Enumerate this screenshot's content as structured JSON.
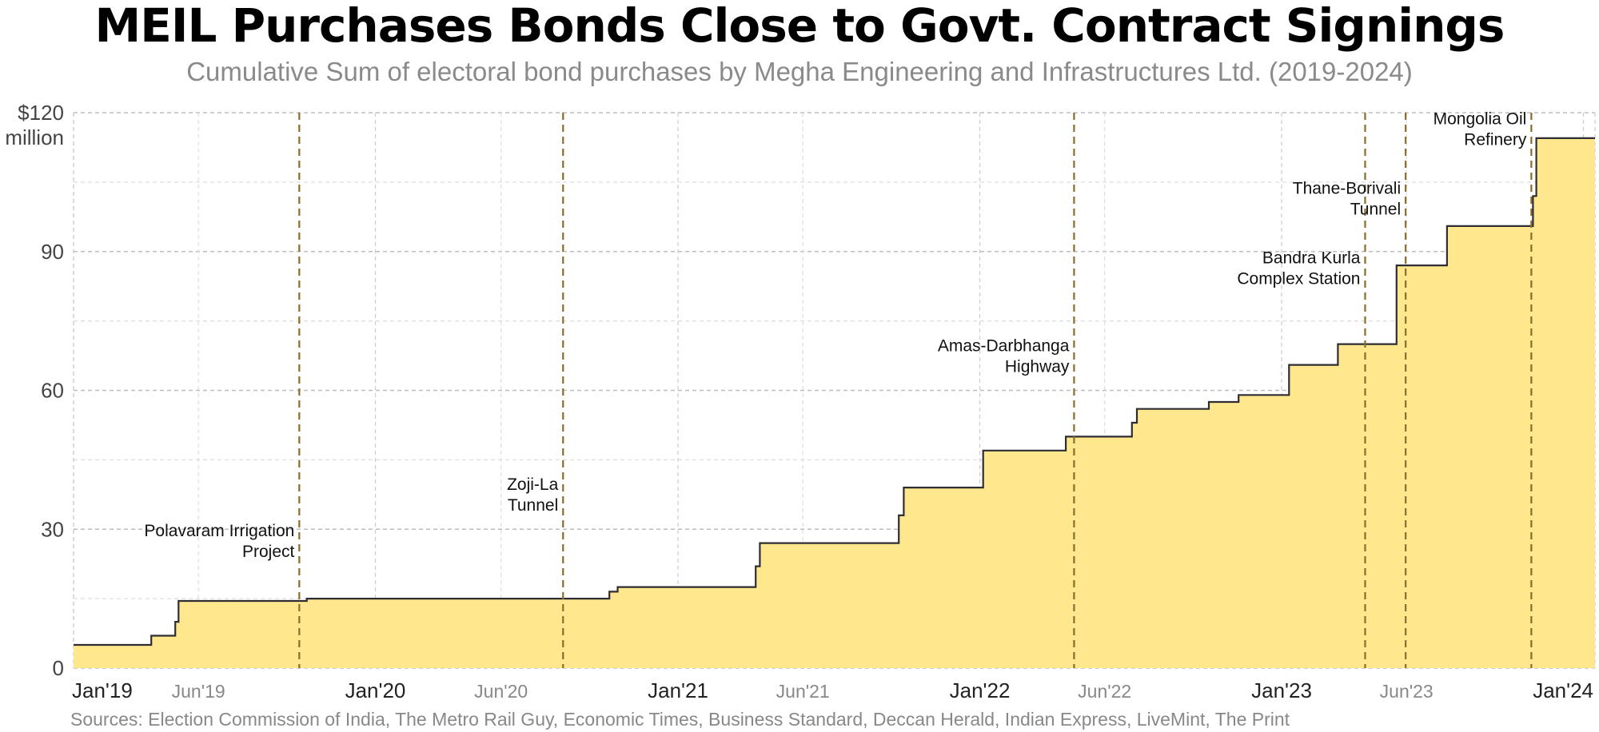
{
  "title": "MEIL Purchases Bonds Close to Govt. Contract Signings",
  "subtitle": "Cumulative Sum of electoral bond purchases by Megha Engineering and Infrastructures Ltd. (2019-2024)",
  "source": "Sources: Election Commission of India, The Metro Rail Guy, Economic Times, Business Standard, Deccan Herald, Indian Express, LiveMint, The Print",
  "colors": {
    "fill": "#fee78c",
    "line": "#2d2d33",
    "event": "#8a6d2c",
    "grid": "#cccccc"
  },
  "chart_data": {
    "type": "area",
    "title": "MEIL Purchases Bonds Close to Govt. Contract Signings",
    "subtitle": "Cumulative Sum of electoral bond purchases by Megha Engineering and Infrastructures Ltd. (2019-2024)",
    "ylabel": "",
    "ylim": [
      0,
      120
    ],
    "xlim": [
      "2019-01-01",
      "2024-01-15"
    ],
    "y_ticks": [
      {
        "value": 0,
        "label": "0"
      },
      {
        "value": 30,
        "label": "30"
      },
      {
        "value": 60,
        "label": "60"
      },
      {
        "value": 90,
        "label": "90"
      },
      {
        "value": 120,
        "label": "$120",
        "label2": "million"
      }
    ],
    "x_ticks": [
      {
        "date": "2019-01-01",
        "label": "Jan'19",
        "major": true
      },
      {
        "date": "2019-06-01",
        "label": "Jun'19",
        "major": false
      },
      {
        "date": "2020-01-01",
        "label": "Jan'20",
        "major": true
      },
      {
        "date": "2020-06-01",
        "label": "Jun'20",
        "major": false
      },
      {
        "date": "2021-01-01",
        "label": "Jan'21",
        "major": true
      },
      {
        "date": "2021-06-01",
        "label": "Jun'21",
        "major": false
      },
      {
        "date": "2022-01-01",
        "label": "Jan'22",
        "major": true
      },
      {
        "date": "2022-06-01",
        "label": "Jun'22",
        "major": false
      },
      {
        "date": "2023-01-01",
        "label": "Jan'23",
        "major": true
      },
      {
        "date": "2023-06-01",
        "label": "Jun'23",
        "major": false
      },
      {
        "date": "2024-01-01",
        "label": "Jan'24",
        "major": true
      }
    ],
    "grid": true,
    "series": [
      {
        "step": true,
        "points": [
          {
            "x": "2019-01-01",
            "y": 5
          },
          {
            "x": "2019-04-05",
            "y": 7
          },
          {
            "x": "2019-05-04",
            "y": 10
          },
          {
            "x": "2019-05-08",
            "y": 14.5
          },
          {
            "x": "2019-10-10",
            "y": 15
          },
          {
            "x": "2020-10-10",
            "y": 16.5
          },
          {
            "x": "2020-10-20",
            "y": 17.5
          },
          {
            "x": "2021-04-05",
            "y": 22
          },
          {
            "x": "2021-04-10",
            "y": 27
          },
          {
            "x": "2021-09-25",
            "y": 33
          },
          {
            "x": "2021-10-01",
            "y": 39
          },
          {
            "x": "2022-01-05",
            "y": 47
          },
          {
            "x": "2022-04-15",
            "y": 50
          },
          {
            "x": "2022-07-04",
            "y": 53
          },
          {
            "x": "2022-07-10",
            "y": 56
          },
          {
            "x": "2022-10-05",
            "y": 57.5
          },
          {
            "x": "2022-11-10",
            "y": 59
          },
          {
            "x": "2023-01-10",
            "y": 65.5
          },
          {
            "x": "2023-03-10",
            "y": 70
          },
          {
            "x": "2023-05-20",
            "y": 87
          },
          {
            "x": "2023-07-20",
            "y": 95.5
          },
          {
            "x": "2023-11-01",
            "y": 102
          },
          {
            "x": "2023-11-05",
            "y": 114.5
          },
          {
            "x": "2024-01-15",
            "y": 114.5
          }
        ]
      }
    ],
    "annotations": [
      {
        "date": "2019-10-01",
        "lines": [
          "Polavaram Irrigation",
          "Project"
        ],
        "y": 24
      },
      {
        "date": "2020-08-15",
        "lines": [
          "Zoji-La",
          "Tunnel"
        ],
        "y": 34
      },
      {
        "date": "2022-04-25",
        "lines": [
          "Amas-Darbhanga",
          "Highway"
        ],
        "y": 64
      },
      {
        "date": "2023-04-12",
        "lines": [
          "Bandra Kurla",
          "Complex Station"
        ],
        "y": 83
      },
      {
        "date": "2023-05-31",
        "lines": [
          "Thane-Borivali",
          "Tunnel"
        ],
        "y": 98
      },
      {
        "date": "2023-10-30",
        "lines": [
          "Mongolia Oil",
          "Refinery"
        ],
        "y": 113
      }
    ]
  }
}
